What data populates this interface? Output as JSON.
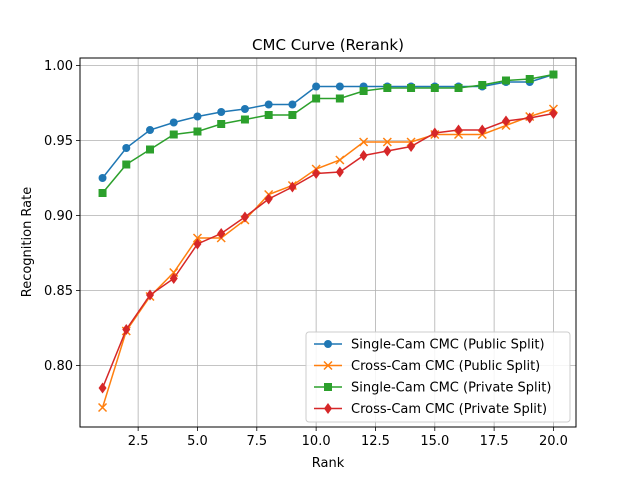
{
  "chart_data": {
    "type": "line",
    "title": "CMC Curve (Rerank)",
    "xlabel": "Rank",
    "ylabel": "Recognition Rate",
    "xlim": [
      0.05,
      20.95
    ],
    "ylim": [
      0.759,
      1.005
    ],
    "xticks": [
      2.5,
      5.0,
      7.5,
      10.0,
      12.5,
      15.0,
      17.5,
      20.0
    ],
    "xtick_labels": [
      "2.5",
      "5.0",
      "7.5",
      "10.0",
      "12.5",
      "15.0",
      "17.5",
      "20.0"
    ],
    "yticks": [
      0.8,
      0.85,
      0.9,
      0.95,
      1.0
    ],
    "ytick_labels": [
      "0.80",
      "0.85",
      "0.90",
      "0.95",
      "1.00"
    ],
    "grid": true,
    "legend_position": "lower-right",
    "x": [
      1,
      2,
      3,
      4,
      5,
      6,
      7,
      8,
      9,
      10,
      11,
      12,
      13,
      14,
      15,
      16,
      17,
      18,
      19,
      20
    ],
    "series": [
      {
        "name": "Single-Cam CMC (Public Split)",
        "color": "#1f77b4",
        "marker": "circle",
        "values": [
          0.925,
          0.945,
          0.957,
          0.962,
          0.966,
          0.969,
          0.971,
          0.974,
          0.974,
          0.986,
          0.986,
          0.986,
          0.986,
          0.986,
          0.986,
          0.986,
          0.986,
          0.989,
          0.989,
          0.994
        ]
      },
      {
        "name": "Cross-Cam CMC (Public Split)",
        "color": "#ff7f0e",
        "marker": "x",
        "values": [
          0.772,
          0.823,
          0.846,
          0.862,
          0.885,
          0.885,
          0.897,
          0.914,
          0.92,
          0.931,
          0.937,
          0.949,
          0.949,
          0.949,
          0.954,
          0.954,
          0.954,
          0.96,
          0.966,
          0.971
        ]
      },
      {
        "name": "Single-Cam CMC (Private Split)",
        "color": "#2ca02c",
        "marker": "square",
        "values": [
          0.915,
          0.934,
          0.944,
          0.954,
          0.956,
          0.961,
          0.964,
          0.967,
          0.967,
          0.978,
          0.978,
          0.983,
          0.985,
          0.985,
          0.985,
          0.985,
          0.987,
          0.99,
          0.991,
          0.994
        ]
      },
      {
        "name": "Cross-Cam CMC (Private Split)",
        "color": "#d62728",
        "marker": "diamond",
        "values": [
          0.785,
          0.824,
          0.847,
          0.858,
          0.881,
          0.888,
          0.899,
          0.911,
          0.919,
          0.928,
          0.929,
          0.94,
          0.943,
          0.946,
          0.955,
          0.957,
          0.957,
          0.963,
          0.965,
          0.968
        ]
      }
    ]
  }
}
